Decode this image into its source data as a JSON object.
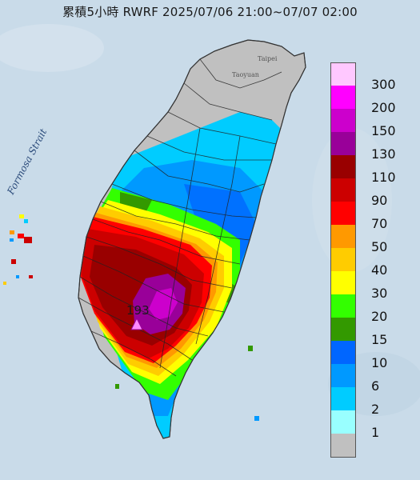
{
  "title": "累積5小時 RWRF 2025/07/06 21:00~07/07 02:00",
  "labels": {
    "strait": "Formosa Strait",
    "taipei": "Taipei",
    "taoyuan": "Taoyuan",
    "max_value": "193"
  },
  "legend": [
    {
      "label": "300",
      "color": "#ffc8ff"
    },
    {
      "label": "200",
      "color": "#ff00ff"
    },
    {
      "label": "150",
      "color": "#cc00cc"
    },
    {
      "label": "130",
      "color": "#990099"
    },
    {
      "label": "110",
      "color": "#990000"
    },
    {
      "label": "90",
      "color": "#cc0000"
    },
    {
      "label": "70",
      "color": "#ff0000"
    },
    {
      "label": "50",
      "color": "#ff9900"
    },
    {
      "label": "40",
      "color": "#ffcc00"
    },
    {
      "label": "30",
      "color": "#ffff00"
    },
    {
      "label": "20",
      "color": "#33ff00"
    },
    {
      "label": "15",
      "color": "#339900"
    },
    {
      "label": "10",
      "color": "#0066ff"
    },
    {
      "label": "6",
      "color": "#0099ff"
    },
    {
      "label": "2",
      "color": "#00ccff"
    },
    {
      "label": "1",
      "color": "#99ffff"
    },
    {
      "label": "",
      "color": "#c0c0c0"
    }
  ],
  "colors": {
    "sea": "#c9dbe9",
    "land": "#c0c0c0"
  },
  "icons": {
    "max_marker": "triangle-marker-icon"
  }
}
